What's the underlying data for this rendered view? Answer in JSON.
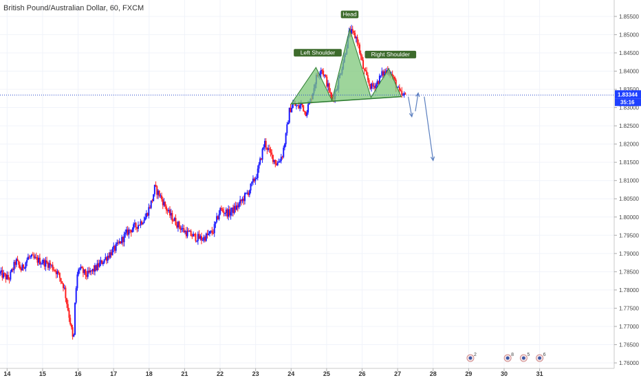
{
  "chart_data": {
    "type": "candlestick",
    "title": "British Pound/Australian Dollar, 60, FXCM",
    "y_range": [
      1.7585,
      1.8595
    ],
    "y_ticks": [
      "1.76000",
      "1.76500",
      "1.77000",
      "1.77500",
      "1.78000",
      "1.78500",
      "1.79000",
      "1.79500",
      "1.80000",
      "1.80500",
      "1.81000",
      "1.81500",
      "1.82000",
      "1.82500",
      "1.83000",
      "1.83500",
      "1.84000",
      "1.84500",
      "1.85000",
      "1.85500"
    ],
    "x_range": [
      14.0,
      31.3
    ],
    "x_ticks": [
      {
        "label": "14",
        "x": 14.2
      },
      {
        "label": "15",
        "x": 15.2
      },
      {
        "label": "16",
        "x": 16.2
      },
      {
        "label": "17",
        "x": 17.2
      },
      {
        "label": "18",
        "x": 18.2
      },
      {
        "label": "21",
        "x": 19.2
      },
      {
        "label": "22",
        "x": 20.2
      },
      {
        "label": "23",
        "x": 21.2
      },
      {
        "label": "24",
        "x": 22.2
      },
      {
        "label": "25",
        "x": 23.2
      },
      {
        "label": "26",
        "x": 24.2
      },
      {
        "label": "27",
        "x": 25.2
      },
      {
        "label": "28",
        "x": 26.2
      },
      {
        "label": "29",
        "x": 27.2
      },
      {
        "label": "30",
        "x": 28.2
      },
      {
        "label": "31",
        "x": 29.2
      }
    ],
    "path": [
      [
        14.0,
        1.7845
      ],
      [
        14.25,
        1.783
      ],
      [
        14.45,
        1.788
      ],
      [
        14.6,
        1.7855
      ],
      [
        14.8,
        1.789
      ],
      [
        15.1,
        1.788
      ],
      [
        15.4,
        1.787
      ],
      [
        15.6,
        1.785
      ],
      [
        15.8,
        1.781
      ],
      [
        16.0,
        1.77
      ],
      [
        16.07,
        1.765
      ],
      [
        16.12,
        1.778
      ],
      [
        16.2,
        1.786
      ],
      [
        16.45,
        1.784
      ],
      [
        16.7,
        1.786
      ],
      [
        16.9,
        1.788
      ],
      [
        17.1,
        1.79
      ],
      [
        17.3,
        1.792
      ],
      [
        17.6,
        1.796
      ],
      [
        17.9,
        1.798
      ],
      [
        18.1,
        1.8
      ],
      [
        18.3,
        1.805
      ],
      [
        18.35,
        1.808
      ],
      [
        18.5,
        1.806
      ],
      [
        18.75,
        1.801
      ],
      [
        19.0,
        1.798
      ],
      [
        19.2,
        1.796
      ],
      [
        19.5,
        1.7945
      ],
      [
        19.7,
        1.794
      ],
      [
        20.0,
        1.796
      ],
      [
        20.2,
        1.802
      ],
      [
        20.45,
        1.801
      ],
      [
        20.7,
        1.803
      ],
      [
        21.0,
        1.807
      ],
      [
        21.25,
        1.812
      ],
      [
        21.45,
        1.8205
      ],
      [
        21.6,
        1.8175
      ],
      [
        21.8,
        1.8145
      ],
      [
        21.95,
        1.817
      ],
      [
        22.05,
        1.822
      ],
      [
        22.15,
        1.829
      ],
      [
        22.25,
        1.831
      ],
      [
        22.4,
        1.83
      ],
      [
        22.5,
        1.831
      ],
      [
        22.6,
        1.8285
      ],
      [
        22.75,
        1.832
      ],
      [
        22.9,
        1.838
      ],
      [
        23.05,
        1.841
      ],
      [
        23.2,
        1.837
      ],
      [
        23.35,
        1.832
      ],
      [
        23.5,
        1.836
      ],
      [
        23.7,
        1.844
      ],
      [
        23.85,
        1.851
      ],
      [
        24.05,
        1.849
      ],
      [
        24.25,
        1.84
      ],
      [
        24.45,
        1.8355
      ],
      [
        24.6,
        1.8365
      ],
      [
        24.75,
        1.839
      ],
      [
        24.95,
        1.8405
      ],
      [
        25.1,
        1.8375
      ],
      [
        25.25,
        1.834
      ],
      [
        25.35,
        1.833
      ],
      [
        25.45,
        1.8334
      ]
    ],
    "last_price": "1.83344",
    "countdown": "35:16",
    "annotations": [
      "Left Shoulder",
      "Head",
      "Right Shoulder"
    ],
    "events": [
      {
        "x": 27.25,
        "count": "2"
      },
      {
        "x": 28.3,
        "count": "8"
      },
      {
        "x": 28.75,
        "count": "5"
      },
      {
        "x": 29.2,
        "count": "6"
      }
    ],
    "colors": {
      "up": "#1a1aff",
      "down": "#ff1e1e",
      "pattern_fill": "#7dc77a",
      "pattern_stroke": "#2e7d32",
      "label_bg": "#3d6b2c",
      "price_line": "#2244cc",
      "arrow": "#5b7fbf"
    }
  }
}
